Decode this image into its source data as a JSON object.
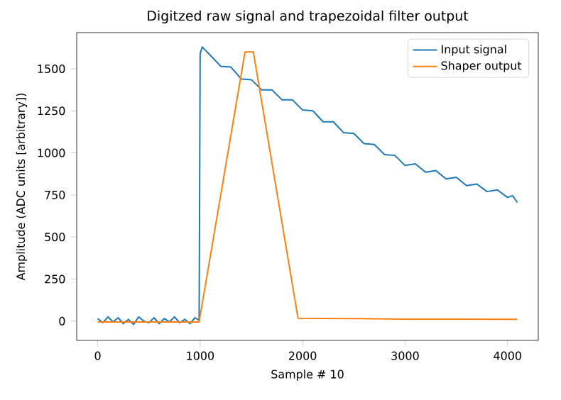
{
  "chart_data": {
    "type": "line",
    "title": "Digitzed raw signal and trapezoidal filter output",
    "xlabel": "Sample # 10",
    "ylabel": "Amplitude (ADC units [arbitrary])",
    "xlim": [
      -205,
      4300
    ],
    "ylim": [
      -115,
      1715
    ],
    "xticks": [
      0,
      1000,
      2000,
      3000,
      4000
    ],
    "yticks": [
      0,
      250,
      500,
      750,
      1000,
      1250,
      1500
    ],
    "legend": "top right",
    "grid": false,
    "series": [
      {
        "name": "Input signal",
        "color": "#1f77b4",
        "x": [
          0,
          50,
          100,
          150,
          200,
          250,
          300,
          350,
          400,
          450,
          500,
          550,
          600,
          650,
          700,
          750,
          800,
          850,
          900,
          950,
          990,
          1000,
          1020,
          1100,
          1200,
          1300,
          1400,
          1500,
          1600,
          1700,
          1800,
          1900,
          2000,
          2100,
          2200,
          2300,
          2400,
          2500,
          2600,
          2700,
          2800,
          2900,
          3000,
          3100,
          3200,
          3300,
          3400,
          3500,
          3600,
          3700,
          3800,
          3900,
          4000,
          4050,
          4095
        ],
        "values": [
          15,
          -10,
          25,
          -5,
          20,
          -15,
          10,
          -20,
          25,
          0,
          -10,
          20,
          -15,
          15,
          -5,
          25,
          -10,
          10,
          -15,
          20,
          5,
          1590,
          1630,
          1580,
          1515,
          1510,
          1440,
          1435,
          1375,
          1375,
          1315,
          1315,
          1255,
          1250,
          1185,
          1185,
          1120,
          1115,
          1055,
          1050,
          990,
          985,
          925,
          935,
          885,
          895,
          845,
          855,
          805,
          815,
          770,
          780,
          735,
          745,
          705
        ]
      },
      {
        "name": "Shaper output",
        "color": "#ff7f0e",
        "x": [
          0,
          990,
          1438,
          1519,
          1955,
          2500,
          3000,
          3500,
          4095
        ],
        "values": [
          -5,
          -5,
          1600,
          1600,
          17,
          15,
          12,
          12,
          10
        ]
      }
    ]
  }
}
